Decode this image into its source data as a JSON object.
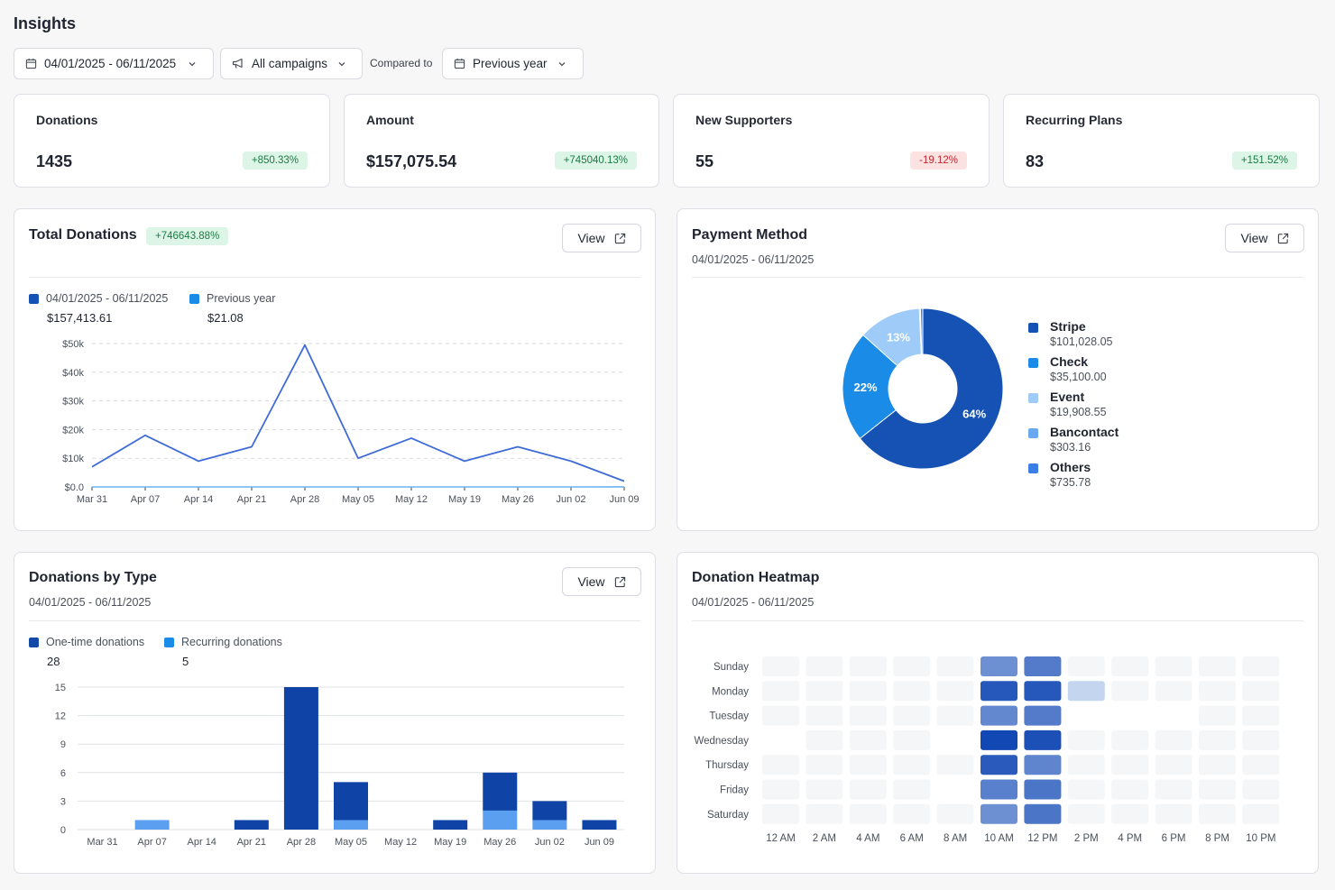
{
  "page": {
    "title": "Insights"
  },
  "filters": {
    "date_range": "04/01/2025 - 06/11/2025",
    "campaigns": "All campaigns",
    "compared_to_label": "Compared to",
    "comparison": "Previous year"
  },
  "stats": [
    {
      "title": "Donations",
      "value": "1435",
      "change": "+850.33%",
      "trend": "pos"
    },
    {
      "title": "Amount",
      "value": "$157,075.54",
      "change": "+745040.13%",
      "trend": "pos"
    },
    {
      "title": "New Supporters",
      "value": "55",
      "change": "-19.12%",
      "trend": "neg"
    },
    {
      "title": "Recurring Plans",
      "value": "83",
      "change": "+151.52%",
      "trend": "pos"
    }
  ],
  "total_donations": {
    "title": "Total Donations",
    "badge": "+746643.88%",
    "view_label": "View",
    "legend": [
      {
        "label": "04/01/2025 - 06/11/2025",
        "value": "$157,413.61",
        "color": "#1651b4"
      },
      {
        "label": "Previous year",
        "value": "$21.08",
        "color": "#1a8ce8"
      }
    ]
  },
  "payment_method": {
    "title": "Payment Method",
    "subtitle": "04/01/2025 - 06/11/2025",
    "view_label": "View"
  },
  "donations_by_type": {
    "title": "Donations by Type",
    "subtitle": "04/01/2025 - 06/11/2025",
    "view_label": "View",
    "legend": [
      {
        "label": "One-time donations",
        "value": "28",
        "color": "#1449a8"
      },
      {
        "label": "Recurring donations",
        "value": "5",
        "color": "#1a8ce8"
      }
    ]
  },
  "heatmap": {
    "title": "Donation Heatmap",
    "subtitle": "04/01/2025 - 06/11/2025"
  },
  "chart_data": [
    {
      "type": "line",
      "title": "Total Donations",
      "x": [
        "Mar 31",
        "Apr 07",
        "Apr 14",
        "Apr 21",
        "Apr 28",
        "May 05",
        "May 12",
        "May 19",
        "May 26",
        "Jun 02",
        "Jun 09"
      ],
      "y_ticks": [
        "$0.0",
        "$10k",
        "$20k",
        "$30k",
        "$40k",
        "$50k"
      ],
      "ylim": [
        0,
        50000
      ],
      "grid": true,
      "series": [
        {
          "name": "04/01/2025 - 06/11/2025",
          "color": "#3f6bd8",
          "values": [
            7000,
            18000,
            9000,
            14000,
            49500,
            10000,
            17000,
            9000,
            14000,
            9000,
            2000
          ]
        },
        {
          "name": "Previous year",
          "color": "#6fb2f0",
          "values": [
            0,
            0,
            0,
            0,
            0,
            0,
            0,
            0,
            0,
            0,
            21
          ]
        }
      ]
    },
    {
      "type": "pie",
      "title": "Payment Method",
      "donut": true,
      "slices": [
        {
          "name": "Stripe",
          "amount": "$101,028.05",
          "value": 101028.05,
          "label": "64%",
          "color": "#1651b4"
        },
        {
          "name": "Check",
          "amount": "$35,100.00",
          "value": 35100.0,
          "label": "22%",
          "color": "#1a8ce8"
        },
        {
          "name": "Event",
          "amount": "$19,908.55",
          "value": 19908.55,
          "label": "13%",
          "color": "#9ecbf7"
        },
        {
          "name": "Bancontact",
          "amount": "$303.16",
          "value": 303.16,
          "label": "",
          "color": "#6aa9f2"
        },
        {
          "name": "Others",
          "amount": "$735.78",
          "value": 735.78,
          "label": "",
          "color": "#3b7fe6"
        }
      ]
    },
    {
      "type": "bar",
      "stacked": true,
      "title": "Donations by Type",
      "categories": [
        "Mar 31",
        "Apr 07",
        "Apr 14",
        "Apr 21",
        "Apr 28",
        "May 05",
        "May 12",
        "May 19",
        "May 26",
        "Jun 02",
        "Jun 09"
      ],
      "y_ticks": [
        "0",
        "3",
        "6",
        "9",
        "12",
        "15"
      ],
      "ylim": [
        0,
        15
      ],
      "grid": true,
      "series": [
        {
          "name": "Recurring donations",
          "color": "#5b9ff0",
          "values": [
            0,
            1,
            0,
            0,
            0,
            1,
            0,
            0,
            2,
            1,
            0
          ]
        },
        {
          "name": "One-time donations",
          "color": "#0f44a6",
          "values": [
            0,
            0,
            0,
            1,
            15,
            4,
            0,
            1,
            4,
            2,
            1
          ]
        }
      ]
    },
    {
      "type": "heatmap",
      "title": "Donation Heatmap",
      "rows": [
        "Sunday",
        "Monday",
        "Tuesday",
        "Wednesday",
        "Thursday",
        "Friday",
        "Saturday"
      ],
      "columns": [
        "12 AM",
        "2 AM",
        "4 AM",
        "6 AM",
        "8 AM",
        "10 AM",
        "12 PM",
        "2 PM",
        "4 PM",
        "6 PM",
        "8 PM",
        "10 PM"
      ],
      "values": [
        [
          0.02,
          0.02,
          0.02,
          0.02,
          0.02,
          0.55,
          0.68,
          0.02,
          0.02,
          0.02,
          0.02,
          0.02
        ],
        [
          0.02,
          0.02,
          0.02,
          0.02,
          0.02,
          0.9,
          0.9,
          0.12,
          0.02,
          0.02,
          0.02,
          0.02
        ],
        [
          0.02,
          0.02,
          0.02,
          0.02,
          0.02,
          0.6,
          0.68,
          0.0,
          0.0,
          0.0,
          0.02,
          0.02
        ],
        [
          0.0,
          0.02,
          0.02,
          0.02,
          0.0,
          1.0,
          0.95,
          0.01,
          0.02,
          0.02,
          0.02,
          0.02
        ],
        [
          0.02,
          0.01,
          0.02,
          0.02,
          0.02,
          0.88,
          0.62,
          0.02,
          0.01,
          0.01,
          0.02,
          0.02
        ],
        [
          0.02,
          0.02,
          0.02,
          0.02,
          0.0,
          0.65,
          0.72,
          0.02,
          0.02,
          0.01,
          0.02,
          0.02
        ],
        [
          0.02,
          0.02,
          0.02,
          0.02,
          0.02,
          0.55,
          0.72,
          0.02,
          0.02,
          0.02,
          0.02,
          0.02
        ]
      ]
    }
  ]
}
